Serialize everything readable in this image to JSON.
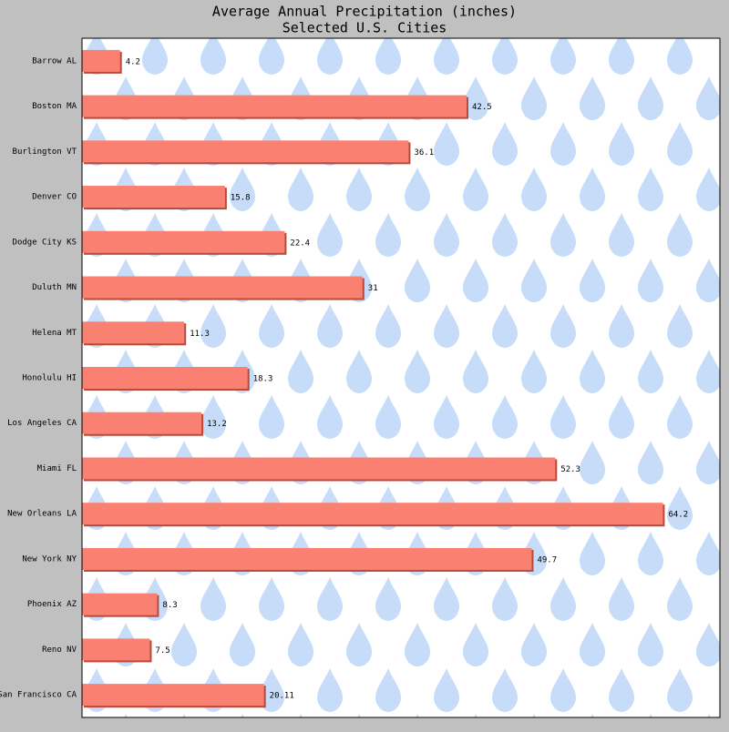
{
  "chart_data": {
    "type": "barh",
    "title": "Average Annual Precipitation (inches)",
    "subtitle": "Selected U.S. Cities",
    "categories": [
      "Barrow AL",
      "Boston MA",
      "Burlington VT",
      "Denver CO",
      "Dodge City KS",
      "Duluth MN",
      "Helena MT",
      "Honolulu HI",
      "Los Angeles CA",
      "Miami FL",
      "New Orleans LA",
      "New York NY",
      "Phoenix AZ",
      "Reno NV",
      "San Francisco CA"
    ],
    "values": [
      4.2,
      42.5,
      36.1,
      15.8,
      22.4,
      31,
      11.3,
      18.3,
      13.2,
      52.3,
      64.2,
      49.7,
      8.3,
      7.5,
      20.11
    ],
    "color": "#fa8072",
    "xlim": [
      0,
      70.5
    ]
  }
}
